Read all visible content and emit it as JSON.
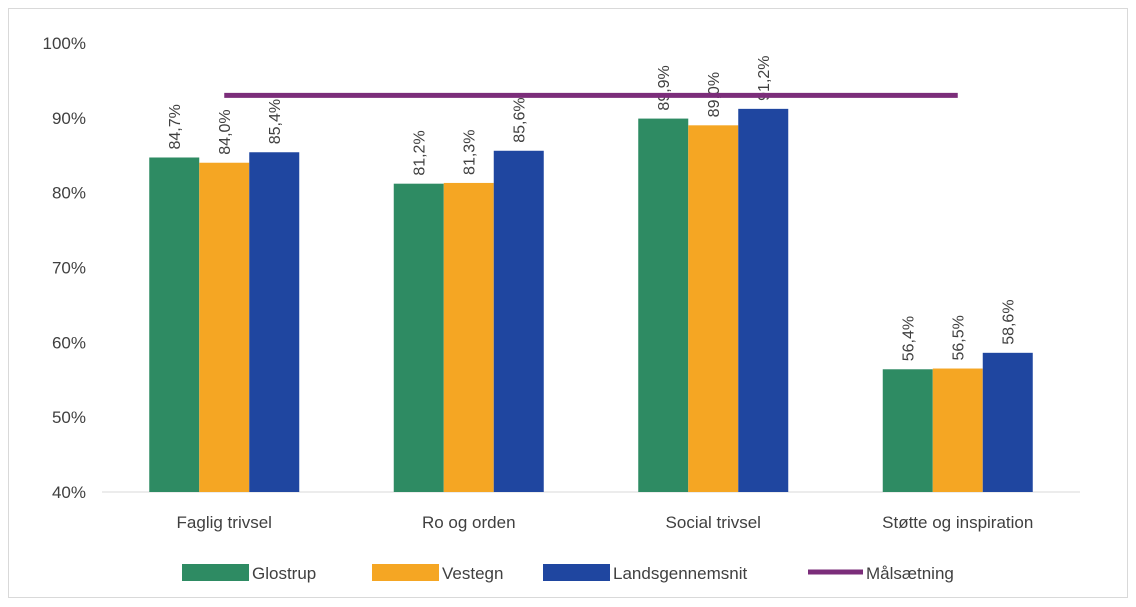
{
  "chart_data": {
    "type": "bar",
    "title": "",
    "xlabel": "",
    "ylabel": "",
    "ylim": [
      0.4,
      1.0
    ],
    "yticks": [
      "40%",
      "50%",
      "60%",
      "70%",
      "80%",
      "90%",
      "100%"
    ],
    "categories": [
      "Faglig trivsel",
      "Ro og orden",
      "Social trivsel",
      "Støtte og inspiration"
    ],
    "series": [
      {
        "name": "Glostrup",
        "color": "#2e8b63",
        "values": [
          0.847,
          0.812,
          0.899,
          0.564
        ],
        "labels": [
          "84,7%",
          "81,2%",
          "89,9%",
          "56,4%"
        ]
      },
      {
        "name": "Vestegn",
        "color": "#f5a623",
        "values": [
          0.84,
          0.813,
          0.89,
          0.565
        ],
        "labels": [
          "84,0%",
          "81,3%",
          "89,0%",
          "56,5%"
        ]
      },
      {
        "name": "Landsgennemsnit",
        "color": "#1f46a0",
        "values": [
          0.854,
          0.856,
          0.912,
          0.586
        ],
        "labels": [
          "85,4%",
          "85,6%",
          "91,2%",
          "58,6%"
        ]
      }
    ],
    "target": {
      "name": "Målsætning",
      "color": "#7b2d7a",
      "value": 0.93
    },
    "grid": false,
    "legend_position": "bottom"
  }
}
